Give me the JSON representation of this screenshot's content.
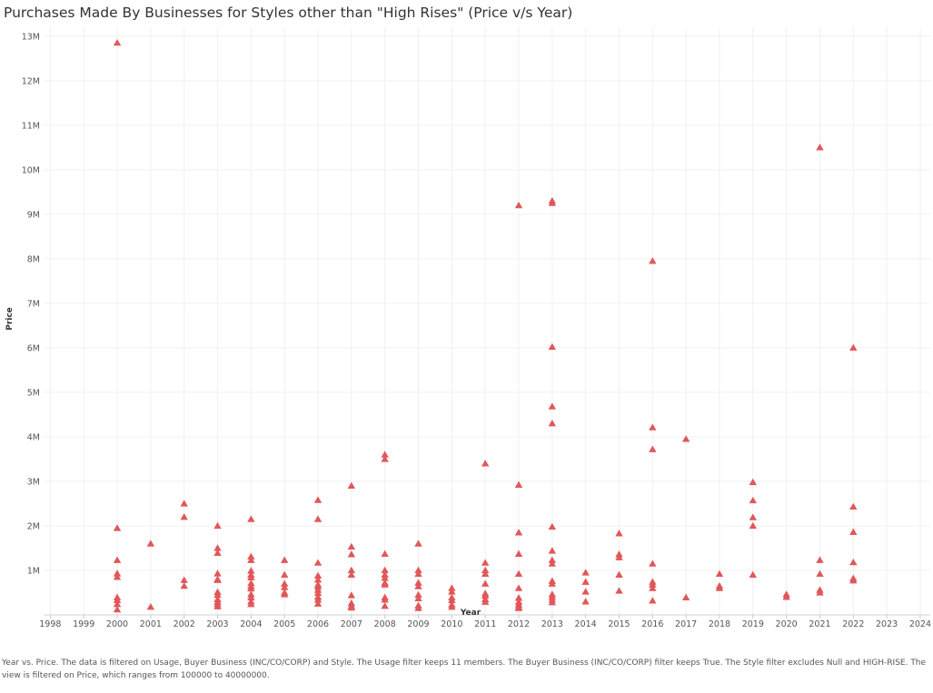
{
  "title": "Purchases Made By Businesses for Styles other than \"High Rises\" (Price v/s Year)",
  "caption": "Year vs. Price. The data is filtered on Usage, Buyer Business (INC/CO/CORP) and Style. The Usage filter keeps 11 members. The Buyer Business (INC/CO/CORP) filter keeps True. The Style filter excludes Null and HIGH-RISE. The view is filtered on Price, which ranges from 100000 to 40000000.",
  "colors": {
    "marker": "#e15759",
    "grid": "#f0f0f0"
  },
  "chart_data": {
    "type": "scatter",
    "title": "Purchases Made By Businesses for Styles other than \"High Rises\" (Price v/s Year)",
    "xlabel": "Year",
    "ylabel": "Price",
    "xlim": [
      1997.8,
      2024.3
    ],
    "ylim": [
      0,
      13200000
    ],
    "x_ticks": [
      1998,
      1999,
      2000,
      2001,
      2002,
      2003,
      2004,
      2005,
      2006,
      2007,
      2008,
      2009,
      2010,
      2011,
      2012,
      2013,
      2014,
      2015,
      2016,
      2017,
      2018,
      2019,
      2020,
      2021,
      2022,
      2023,
      2024
    ],
    "y_ticks": [
      1000000,
      2000000,
      3000000,
      4000000,
      5000000,
      6000000,
      7000000,
      8000000,
      9000000,
      10000000,
      11000000,
      12000000,
      13000000
    ],
    "y_tick_labels": [
      "1M",
      "2M",
      "3M",
      "4M",
      "5M",
      "6M",
      "7M",
      "8M",
      "9M",
      "10M",
      "11M",
      "12M",
      "13M"
    ],
    "marker": "triangle",
    "grid": true,
    "points": [
      [
        2000,
        12850000
      ],
      [
        2000,
        1950000
      ],
      [
        2000,
        1230000
      ],
      [
        2000,
        930000
      ],
      [
        2000,
        850000
      ],
      [
        2000,
        390000
      ],
      [
        2000,
        330000
      ],
      [
        2000,
        240000
      ],
      [
        2000,
        120000
      ],
      [
        2001,
        1600000
      ],
      [
        2001,
        180000
      ],
      [
        2002,
        2500000
      ],
      [
        2002,
        2200000
      ],
      [
        2002,
        780000
      ],
      [
        2002,
        650000
      ],
      [
        2003,
        2000000
      ],
      [
        2003,
        1500000
      ],
      [
        2003,
        1390000
      ],
      [
        2003,
        930000
      ],
      [
        2003,
        800000
      ],
      [
        2003,
        780000
      ],
      [
        2003,
        510000
      ],
      [
        2003,
        450000
      ],
      [
        2003,
        350000
      ],
      [
        2003,
        290000
      ],
      [
        2003,
        240000
      ],
      [
        2003,
        190000
      ],
      [
        2004,
        2150000
      ],
      [
        2004,
        1310000
      ],
      [
        2004,
        1230000
      ],
      [
        2004,
        990000
      ],
      [
        2004,
        900000
      ],
      [
        2004,
        840000
      ],
      [
        2004,
        710000
      ],
      [
        2004,
        640000
      ],
      [
        2004,
        590000
      ],
      [
        2004,
        460000
      ],
      [
        2004,
        390000
      ],
      [
        2004,
        300000
      ],
      [
        2004,
        240000
      ],
      [
        2005,
        1230000
      ],
      [
        2005,
        900000
      ],
      [
        2005,
        700000
      ],
      [
        2005,
        620000
      ],
      [
        2005,
        500000
      ],
      [
        2005,
        460000
      ],
      [
        2006,
        2580000
      ],
      [
        2006,
        2150000
      ],
      [
        2006,
        1170000
      ],
      [
        2006,
        880000
      ],
      [
        2006,
        790000
      ],
      [
        2006,
        680000
      ],
      [
        2006,
        630000
      ],
      [
        2006,
        560000
      ],
      [
        2006,
        490000
      ],
      [
        2006,
        400000
      ],
      [
        2006,
        340000
      ],
      [
        2006,
        250000
      ],
      [
        2007,
        2900000
      ],
      [
        2007,
        1530000
      ],
      [
        2007,
        1360000
      ],
      [
        2007,
        1000000
      ],
      [
        2007,
        900000
      ],
      [
        2007,
        440000
      ],
      [
        2007,
        260000
      ],
      [
        2007,
        200000
      ],
      [
        2007,
        160000
      ],
      [
        2008,
        3600000
      ],
      [
        2008,
        3500000
      ],
      [
        2008,
        1370000
      ],
      [
        2008,
        1000000
      ],
      [
        2008,
        900000
      ],
      [
        2008,
        830000
      ],
      [
        2008,
        720000
      ],
      [
        2008,
        680000
      ],
      [
        2008,
        390000
      ],
      [
        2008,
        340000
      ],
      [
        2008,
        200000
      ],
      [
        2009,
        1600000
      ],
      [
        2009,
        1000000
      ],
      [
        2009,
        920000
      ],
      [
        2009,
        720000
      ],
      [
        2009,
        640000
      ],
      [
        2009,
        450000
      ],
      [
        2009,
        370000
      ],
      [
        2009,
        210000
      ],
      [
        2009,
        150000
      ],
      [
        2010,
        600000
      ],
      [
        2010,
        520000
      ],
      [
        2010,
        390000
      ],
      [
        2010,
        330000
      ],
      [
        2010,
        230000
      ],
      [
        2010,
        180000
      ],
      [
        2011,
        3400000
      ],
      [
        2011,
        1170000
      ],
      [
        2011,
        1000000
      ],
      [
        2011,
        920000
      ],
      [
        2011,
        700000
      ],
      [
        2011,
        480000
      ],
      [
        2011,
        430000
      ],
      [
        2011,
        350000
      ],
      [
        2011,
        290000
      ],
      [
        2012,
        9200000
      ],
      [
        2012,
        2920000
      ],
      [
        2012,
        1850000
      ],
      [
        2012,
        1370000
      ],
      [
        2012,
        920000
      ],
      [
        2012,
        600000
      ],
      [
        2012,
        380000
      ],
      [
        2012,
        290000
      ],
      [
        2012,
        230000
      ],
      [
        2012,
        180000
      ],
      [
        2012,
        150000
      ],
      [
        2013,
        9300000
      ],
      [
        2013,
        9250000
      ],
      [
        2013,
        6020000
      ],
      [
        2013,
        4680000
      ],
      [
        2013,
        4300000
      ],
      [
        2013,
        1980000
      ],
      [
        2013,
        1440000
      ],
      [
        2013,
        1230000
      ],
      [
        2013,
        1150000
      ],
      [
        2013,
        760000
      ],
      [
        2013,
        700000
      ],
      [
        2013,
        460000
      ],
      [
        2013,
        400000
      ],
      [
        2013,
        340000
      ],
      [
        2013,
        280000
      ],
      [
        2014,
        950000
      ],
      [
        2014,
        740000
      ],
      [
        2014,
        520000
      ],
      [
        2014,
        300000
      ],
      [
        2015,
        1830000
      ],
      [
        2015,
        1360000
      ],
      [
        2015,
        1290000
      ],
      [
        2015,
        900000
      ],
      [
        2015,
        540000
      ],
      [
        2016,
        7950000
      ],
      [
        2016,
        4210000
      ],
      [
        2016,
        3720000
      ],
      [
        2016,
        1150000
      ],
      [
        2016,
        740000
      ],
      [
        2016,
        680000
      ],
      [
        2016,
        600000
      ],
      [
        2016,
        320000
      ],
      [
        2017,
        3950000
      ],
      [
        2017,
        390000
      ],
      [
        2018,
        920000
      ],
      [
        2018,
        650000
      ],
      [
        2018,
        600000
      ],
      [
        2019,
        2980000
      ],
      [
        2019,
        2570000
      ],
      [
        2019,
        2190000
      ],
      [
        2019,
        2000000
      ],
      [
        2019,
        900000
      ],
      [
        2020,
        460000
      ],
      [
        2020,
        400000
      ],
      [
        2021,
        10500000
      ],
      [
        2021,
        1230000
      ],
      [
        2021,
        920000
      ],
      [
        2021,
        560000
      ],
      [
        2021,
        500000
      ],
      [
        2022,
        6000000
      ],
      [
        2022,
        2430000
      ],
      [
        2022,
        1860000
      ],
      [
        2022,
        1180000
      ],
      [
        2022,
        820000
      ],
      [
        2022,
        770000
      ]
    ]
  }
}
